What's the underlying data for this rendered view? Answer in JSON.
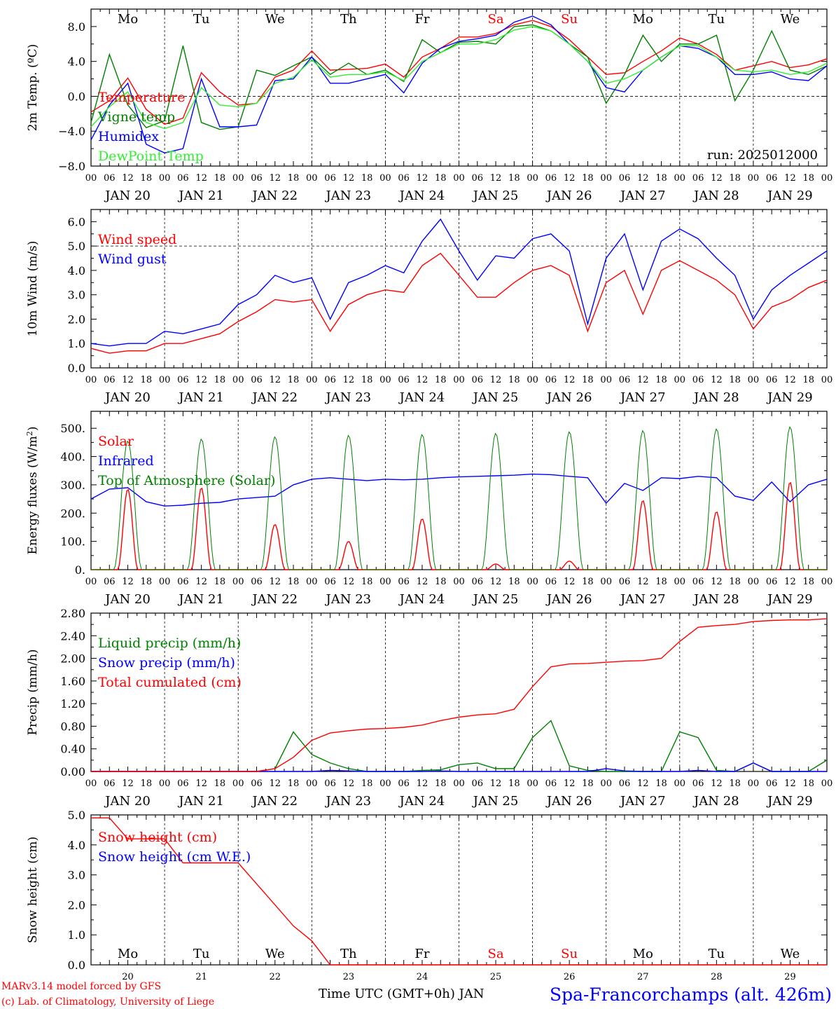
{
  "run_label": "run: 2025012000",
  "footer": {
    "credit_line1": "MARv3.14 model forced by GFS",
    "credit_line2": "(c) Lab. of Climatology, University of Liege",
    "axis_title": "Time UTC (GMT+0h) JAN",
    "station": "Spa-Francorchamps (alt. 426m)"
  },
  "days": {
    "weekday_labels": [
      "Mo",
      "Tu",
      "We",
      "Th",
      "Fr",
      "Sa",
      "Su",
      "Mo",
      "Tu",
      "We"
    ],
    "weekend_indices": [
      5,
      6
    ],
    "date_labels": [
      "JAN 20",
      "JAN 21",
      "JAN 22",
      "JAN 23",
      "JAN 24",
      "JAN 25",
      "JAN 26",
      "JAN 27",
      "JAN 28",
      "JAN 29"
    ],
    "day_numbers": [
      "20",
      "21",
      "22",
      "23",
      "24",
      "25",
      "26",
      "27",
      "28",
      "29"
    ],
    "hour_ticks": [
      "00",
      "06",
      "12",
      "18"
    ]
  },
  "colors": {
    "red": "#ff0000",
    "green": "#008000",
    "blue": "#0000ff",
    "light_green": "#33ee33",
    "station_blue": "#0000ff"
  },
  "chart_data": [
    {
      "id": "temp",
      "type": "line",
      "ylabel": "2m Temp. (ºC)",
      "ylim": [
        -8,
        10
      ],
      "yticks": [
        -8,
        -4,
        0,
        4,
        8
      ],
      "ytick_labels": [
        "−8.0",
        "−4.0",
        "0.0",
        "4.0",
        "8.0"
      ],
      "ref_line": 0,
      "x_hours": [
        0,
        6,
        12,
        18,
        24,
        30,
        36,
        42,
        48,
        54,
        60,
        66,
        72,
        78,
        84,
        90,
        96,
        102,
        108,
        114,
        120,
        126,
        132,
        138,
        144,
        150,
        156,
        162,
        168,
        174,
        180,
        186,
        192,
        198,
        204,
        210,
        216,
        222,
        228,
        234,
        240
      ],
      "series": [
        {
          "name": "Temperature",
          "color": "red",
          "values": [
            -1.8,
            -0.5,
            2.1,
            -1.5,
            -3.2,
            -2.5,
            2.7,
            0.5,
            -1.0,
            -0.8,
            2.2,
            3.0,
            5.2,
            3.0,
            3.1,
            3.2,
            3.7,
            2.2,
            4.5,
            5.5,
            6.8,
            6.8,
            7.2,
            8.2,
            8.7,
            8.0,
            6.5,
            4.5,
            2.5,
            2.7,
            4.0,
            5.2,
            6.7,
            6.0,
            4.8,
            3.0,
            3.5,
            4.0,
            3.3,
            3.6,
            4.3
          ]
        },
        {
          "name": "Vigne temp",
          "color": "green",
          "values": [
            -3.0,
            4.8,
            -1.0,
            -3.6,
            -2.8,
            5.8,
            -3.0,
            -3.8,
            -3.5,
            3.0,
            2.4,
            3.5,
            4.5,
            2.5,
            3.8,
            2.5,
            3.0,
            1.7,
            6.5,
            5.0,
            6.2,
            6.3,
            6.0,
            8.0,
            8.2,
            7.5,
            6.0,
            4.5,
            -0.8,
            2.5,
            7.0,
            4.0,
            6.0,
            6.0,
            7.0,
            -0.5,
            3.0,
            7.5,
            3.0,
            2.5,
            3.5
          ]
        },
        {
          "name": "Humidex",
          "color": "blue",
          "values": [
            -5.0,
            -1.0,
            1.5,
            -5.5,
            -6.5,
            -6.0,
            2.0,
            -3.5,
            -3.5,
            -3.3,
            1.8,
            2.0,
            4.5,
            1.5,
            1.5,
            2.0,
            2.5,
            0.4,
            3.8,
            5.5,
            6.3,
            6.6,
            7.0,
            8.5,
            9.2,
            8.2,
            6.0,
            4.0,
            1.0,
            0.5,
            3.0,
            4.5,
            5.8,
            5.5,
            4.5,
            2.5,
            2.5,
            2.8,
            2.0,
            1.8,
            3.5
          ]
        },
        {
          "name": "DewPoint Temp",
          "color": "light_green",
          "values": [
            -3.5,
            -1.2,
            0.5,
            -3.0,
            -3.7,
            -3.0,
            1.0,
            -1.0,
            -1.2,
            -0.8,
            1.5,
            2.2,
            4.2,
            2.2,
            2.5,
            2.5,
            2.8,
            1.8,
            4.0,
            5.0,
            6.0,
            6.0,
            6.5,
            7.6,
            8.0,
            7.5,
            6.0,
            4.0,
            1.5,
            2.0,
            3.0,
            4.5,
            5.8,
            5.8,
            4.5,
            3.0,
            2.8,
            3.0,
            2.5,
            2.8,
            3.8
          ]
        }
      ]
    },
    {
      "id": "wind",
      "type": "line",
      "ylabel": "10m Wind (m/s)",
      "ylim": [
        0,
        6.5
      ],
      "yticks": [
        0,
        1,
        2,
        3,
        4,
        5,
        6
      ],
      "ytick_labels": [
        "0.0",
        "1.0",
        "2.0",
        "3.0",
        "4.0",
        "5.0",
        "6.0"
      ],
      "ref_line": 5,
      "x_hours": [
        0,
        6,
        12,
        18,
        24,
        30,
        36,
        42,
        48,
        54,
        60,
        66,
        72,
        78,
        84,
        90,
        96,
        102,
        108,
        114,
        120,
        126,
        132,
        138,
        144,
        150,
        156,
        162,
        168,
        174,
        180,
        186,
        192,
        198,
        204,
        210,
        216,
        222,
        228,
        234,
        240
      ],
      "series": [
        {
          "name": "Wind speed",
          "color": "red",
          "values": [
            0.8,
            0.6,
            0.7,
            0.7,
            1.0,
            1.0,
            1.2,
            1.4,
            1.9,
            2.3,
            2.8,
            2.7,
            2.8,
            1.5,
            2.6,
            3.0,
            3.2,
            3.1,
            4.2,
            4.7,
            3.8,
            2.9,
            2.9,
            3.5,
            4.0,
            4.2,
            3.8,
            1.5,
            3.5,
            4.0,
            2.2,
            4.0,
            4.4,
            4.0,
            3.6,
            3.0,
            1.6,
            2.5,
            2.8,
            3.3,
            3.6
          ]
        },
        {
          "name": "Wind gust",
          "color": "blue",
          "values": [
            1.0,
            0.9,
            1.0,
            1.0,
            1.5,
            1.4,
            1.6,
            1.8,
            2.6,
            3.0,
            3.8,
            3.5,
            3.7,
            2.0,
            3.5,
            3.8,
            4.2,
            3.9,
            5.2,
            6.1,
            4.8,
            3.6,
            4.6,
            4.5,
            5.3,
            5.5,
            4.8,
            1.8,
            4.5,
            5.5,
            3.2,
            5.2,
            5.7,
            5.3,
            4.5,
            3.8,
            2.0,
            3.2,
            3.8,
            4.3,
            4.8
          ]
        }
      ]
    },
    {
      "id": "energy",
      "type": "line",
      "ylabel": "Energy fluxes (W/m²)",
      "ylim": [
        0,
        560
      ],
      "yticks": [
        0,
        100,
        200,
        300,
        400,
        500
      ],
      "ytick_labels": [
        "0.",
        "100.",
        "200.",
        "300.",
        "400.",
        "500."
      ],
      "solar_toa_peaks": [
        455,
        462,
        470,
        475,
        478,
        482,
        488,
        492,
        498,
        505
      ],
      "solar_peaks": [
        285,
        290,
        160,
        100,
        180,
        20,
        30,
        245,
        205,
        310
      ],
      "x_hours": [
        0,
        6,
        12,
        18,
        24,
        30,
        36,
        42,
        48,
        54,
        60,
        66,
        72,
        78,
        84,
        90,
        96,
        102,
        108,
        114,
        120,
        126,
        132,
        138,
        144,
        150,
        156,
        162,
        168,
        174,
        180,
        186,
        192,
        198,
        204,
        210,
        216,
        222,
        228,
        234,
        240
      ],
      "series": [
        {
          "name": "Solar",
          "color": "red"
        },
        {
          "name": "Infrared",
          "color": "blue",
          "values": [
            250,
            285,
            290,
            240,
            225,
            228,
            235,
            238,
            250,
            255,
            260,
            300,
            320,
            325,
            320,
            315,
            320,
            318,
            320,
            325,
            328,
            330,
            332,
            334,
            338,
            336,
            330,
            325,
            235,
            305,
            280,
            325,
            322,
            330,
            325,
            260,
            245,
            310,
            240,
            300,
            320
          ]
        },
        {
          "name": "Top of Atmosphere (Solar)",
          "color": "green"
        }
      ]
    },
    {
      "id": "precip",
      "type": "line",
      "ylabel": "Precip (mm/h)",
      "ylim": [
        0,
        2.8
      ],
      "yticks": [
        0,
        0.4,
        0.8,
        1.2,
        1.6,
        2.0,
        2.4,
        2.8
      ],
      "ytick_labels": [
        "0.00",
        "0.40",
        "0.80",
        "1.20",
        "1.60",
        "2.00",
        "2.40",
        "2.80"
      ],
      "x_hours": [
        0,
        6,
        12,
        18,
        24,
        30,
        36,
        42,
        48,
        54,
        60,
        66,
        72,
        78,
        84,
        90,
        96,
        102,
        108,
        114,
        120,
        126,
        132,
        138,
        144,
        150,
        156,
        162,
        168,
        174,
        180,
        186,
        192,
        198,
        204,
        210,
        216,
        222,
        228,
        234,
        240
      ],
      "series": [
        {
          "name": "Liquid precip (mm/h)",
          "color": "green",
          "values": [
            0,
            0,
            0,
            0,
            0,
            0,
            0,
            0,
            0,
            0,
            0.05,
            0.7,
            0.3,
            0.15,
            0.05,
            0,
            0,
            0,
            0.02,
            0.03,
            0.12,
            0.15,
            0.05,
            0.05,
            0.6,
            0.9,
            0.1,
            0.02,
            0,
            0,
            0,
            0,
            0.7,
            0.6,
            0.02,
            0,
            0.15,
            0,
            0,
            0,
            0.2
          ]
        },
        {
          "name": "Snow precip (mm/h)",
          "color": "blue",
          "values": [
            0,
            0,
            0,
            0,
            0,
            0,
            0,
            0,
            0,
            0,
            0,
            0,
            0,
            0.02,
            0.01,
            0,
            0,
            0,
            0,
            0.01,
            0,
            0,
            0,
            0,
            0,
            0,
            0,
            0,
            0.05,
            0.01,
            0,
            0,
            0,
            0.02,
            0,
            0,
            0.15,
            0,
            0,
            0,
            0
          ]
        },
        {
          "name": "Total cumulated (cm)",
          "color": "red",
          "values": [
            0,
            0,
            0,
            0,
            0,
            0,
            0,
            0,
            0,
            0,
            0.05,
            0.25,
            0.55,
            0.68,
            0.72,
            0.75,
            0.76,
            0.78,
            0.82,
            0.9,
            0.96,
            1.0,
            1.02,
            1.1,
            1.5,
            1.85,
            1.9,
            1.91,
            1.93,
            1.95,
            1.96,
            2.0,
            2.3,
            2.55,
            2.58,
            2.6,
            2.65,
            2.67,
            2.68,
            2.68,
            2.7
          ]
        }
      ]
    },
    {
      "id": "snow",
      "type": "line",
      "ylabel": "Snow height (cm)",
      "ylim": [
        0,
        5
      ],
      "yticks": [
        0,
        1,
        2,
        3,
        4,
        5
      ],
      "ytick_labels": [
        "0.0",
        "1.0",
        "2.0",
        "3.0",
        "4.0",
        "5.0"
      ],
      "x_hours": [
        0,
        6,
        12,
        18,
        24,
        30,
        36,
        42,
        48,
        54,
        60,
        66,
        72,
        78,
        84,
        90,
        96,
        102,
        108,
        114,
        120,
        126,
        132,
        138,
        144,
        150,
        156,
        162,
        168,
        174,
        180,
        186,
        192,
        198,
        204,
        210,
        216,
        222,
        228,
        234,
        240
      ],
      "series": [
        {
          "name": "Snow height (cm)",
          "color": "red",
          "values": [
            4.9,
            4.9,
            4.2,
            4.2,
            4.2,
            3.4,
            3.4,
            3.4,
            3.4,
            2.7,
            2.0,
            1.3,
            0.8,
            0,
            0,
            0,
            0,
            0,
            0,
            0,
            0,
            0,
            0,
            0,
            0,
            0,
            0,
            0,
            0,
            0,
            0,
            0,
            0,
            0,
            0,
            0,
            0,
            0,
            0,
            0,
            0
          ]
        },
        {
          "name": "Snow height (cm W.E.)",
          "color": "blue"
        }
      ]
    }
  ]
}
